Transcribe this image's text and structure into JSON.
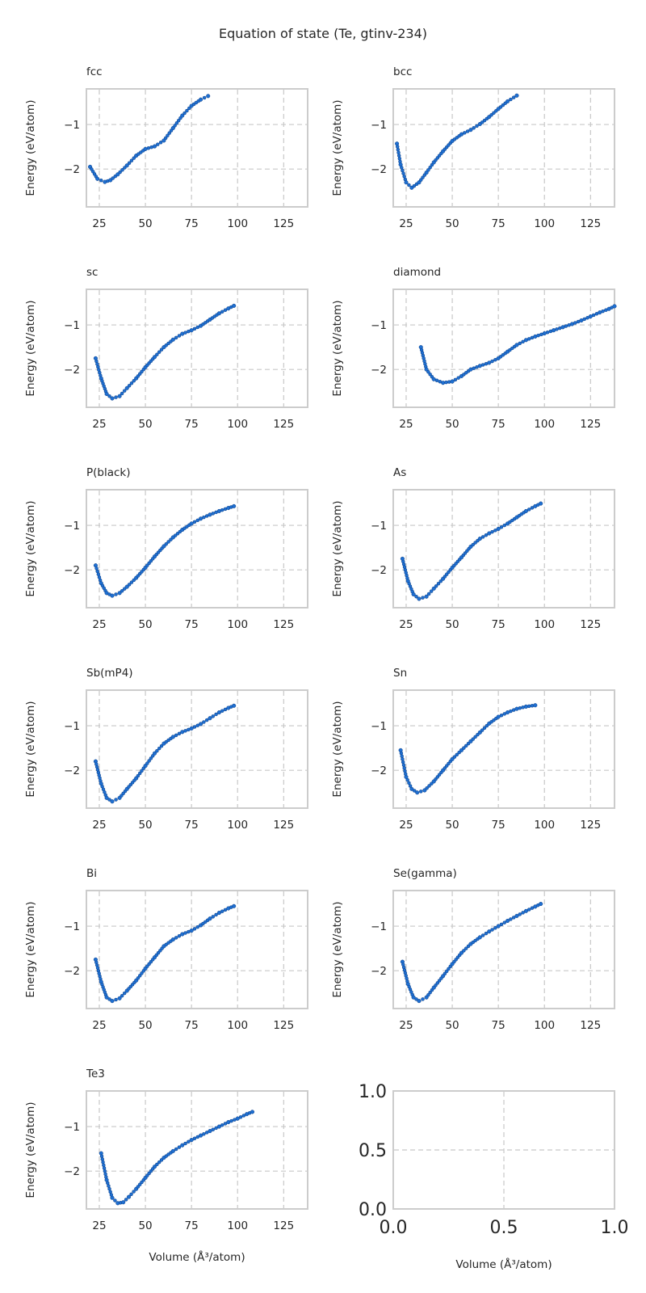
{
  "figure": {
    "title": "Equation of state (Te, gtinv-234)"
  },
  "chart_data": [
    {
      "type": "scatter",
      "title": "fcc",
      "xlabel": "",
      "ylabel": "Energy (eV/atom)",
      "xlim": [
        18,
        138
      ],
      "ylim": [
        -2.85,
        -0.2
      ],
      "xticks": [
        25,
        50,
        75,
        100,
        125
      ],
      "yticks": [
        -2,
        -1
      ],
      "grid": true,
      "color": "#1f6fd1",
      "x": [
        20,
        24,
        28,
        31,
        35,
        40,
        45,
        50,
        55,
        60,
        65,
        70,
        75,
        80,
        84
      ],
      "y": [
        -1.95,
        -2.22,
        -2.29,
        -2.25,
        -2.12,
        -1.92,
        -1.7,
        -1.55,
        -1.49,
        -1.36,
        -1.08,
        -0.8,
        -0.58,
        -0.44,
        -0.36
      ]
    },
    {
      "type": "scatter",
      "title": "bcc",
      "xlabel": "",
      "ylabel": "Energy (eV/atom)",
      "xlim": [
        18,
        138
      ],
      "ylim": [
        -2.85,
        -0.2
      ],
      "xticks": [
        25,
        50,
        75,
        100,
        125
      ],
      "yticks": [
        -2,
        -1
      ],
      "grid": true,
      "color": "#1f6fd1",
      "x": [
        20,
        22,
        25,
        28,
        32,
        36,
        40,
        45,
        50,
        55,
        60,
        65,
        70,
        75,
        80,
        85
      ],
      "y": [
        -1.43,
        -1.9,
        -2.3,
        -2.42,
        -2.3,
        -2.08,
        -1.85,
        -1.6,
        -1.37,
        -1.22,
        -1.12,
        -0.99,
        -0.83,
        -0.65,
        -0.48,
        -0.35
      ]
    },
    {
      "type": "scatter",
      "title": "sc",
      "xlabel": "",
      "ylabel": "Energy (eV/atom)",
      "xlim": [
        18,
        138
      ],
      "ylim": [
        -2.85,
        -0.2
      ],
      "xticks": [
        25,
        50,
        75,
        100,
        125
      ],
      "yticks": [
        -2,
        -1
      ],
      "grid": true,
      "color": "#1f6fd1",
      "x": [
        23,
        26,
        29,
        32,
        36,
        40,
        45,
        50,
        55,
        60,
        65,
        70,
        75,
        80,
        85,
        90,
        95,
        98
      ],
      "y": [
        -1.75,
        -2.2,
        -2.55,
        -2.65,
        -2.6,
        -2.42,
        -2.2,
        -1.95,
        -1.72,
        -1.5,
        -1.33,
        -1.2,
        -1.12,
        -1.02,
        -0.88,
        -0.74,
        -0.63,
        -0.57
      ]
    },
    {
      "type": "scatter",
      "title": "diamond",
      "xlabel": "",
      "ylabel": "Energy (eV/atom)",
      "xlim": [
        18,
        138
      ],
      "ylim": [
        -2.85,
        -0.2
      ],
      "xticks": [
        25,
        50,
        75,
        100,
        125
      ],
      "yticks": [
        -2,
        -1
      ],
      "grid": true,
      "color": "#1f6fd1",
      "x": [
        33,
        36,
        40,
        45,
        50,
        55,
        60,
        65,
        70,
        75,
        80,
        85,
        90,
        95,
        100,
        105,
        110,
        115,
        120,
        125,
        130,
        135,
        138
      ],
      "y": [
        -1.5,
        -2.0,
        -2.22,
        -2.3,
        -2.27,
        -2.15,
        -2.0,
        -1.92,
        -1.85,
        -1.75,
        -1.6,
        -1.45,
        -1.34,
        -1.26,
        -1.19,
        -1.12,
        -1.05,
        -0.98,
        -0.9,
        -0.81,
        -0.72,
        -0.64,
        -0.58
      ]
    },
    {
      "type": "scatter",
      "title": "P(black)",
      "xlabel": "",
      "ylabel": "Energy (eV/atom)",
      "xlim": [
        18,
        138
      ],
      "ylim": [
        -2.85,
        -0.2
      ],
      "xticks": [
        25,
        50,
        75,
        100,
        125
      ],
      "yticks": [
        -2,
        -1
      ],
      "grid": true,
      "color": "#1f6fd1",
      "x": [
        23,
        26,
        29,
        32,
        36,
        40,
        45,
        50,
        55,
        60,
        65,
        70,
        75,
        80,
        85,
        90,
        95,
        98
      ],
      "y": [
        -1.9,
        -2.3,
        -2.52,
        -2.58,
        -2.52,
        -2.38,
        -2.18,
        -1.95,
        -1.7,
        -1.47,
        -1.27,
        -1.1,
        -0.96,
        -0.85,
        -0.76,
        -0.68,
        -0.61,
        -0.57
      ]
    },
    {
      "type": "scatter",
      "title": "As",
      "xlabel": "",
      "ylabel": "Energy (eV/atom)",
      "xlim": [
        18,
        138
      ],
      "ylim": [
        -2.85,
        -0.2
      ],
      "xticks": [
        25,
        50,
        75,
        100,
        125
      ],
      "yticks": [
        -2,
        -1
      ],
      "grid": true,
      "color": "#1f6fd1",
      "x": [
        23,
        26,
        29,
        32,
        36,
        40,
        45,
        50,
        55,
        60,
        65,
        70,
        75,
        80,
        85,
        90,
        95,
        98
      ],
      "y": [
        -1.75,
        -2.25,
        -2.55,
        -2.65,
        -2.6,
        -2.42,
        -2.2,
        -1.95,
        -1.72,
        -1.48,
        -1.3,
        -1.18,
        -1.08,
        -0.96,
        -0.82,
        -0.68,
        -0.57,
        -0.51
      ]
    },
    {
      "type": "scatter",
      "title": "Sb(mP4)",
      "xlabel": "",
      "ylabel": "Energy (eV/atom)",
      "xlim": [
        18,
        138
      ],
      "ylim": [
        -2.85,
        -0.2
      ],
      "xticks": [
        25,
        50,
        75,
        100,
        125
      ],
      "yticks": [
        -2,
        -1
      ],
      "grid": true,
      "color": "#1f6fd1",
      "x": [
        23,
        26,
        29,
        32,
        36,
        40,
        45,
        50,
        55,
        60,
        65,
        70,
        75,
        80,
        85,
        90,
        95,
        98
      ],
      "y": [
        -1.8,
        -2.3,
        -2.62,
        -2.7,
        -2.62,
        -2.42,
        -2.18,
        -1.9,
        -1.62,
        -1.4,
        -1.25,
        -1.14,
        -1.06,
        -0.96,
        -0.83,
        -0.7,
        -0.6,
        -0.55
      ]
    },
    {
      "type": "scatter",
      "title": "Sn",
      "xlabel": "",
      "ylabel": "Energy (eV/atom)",
      "xlim": [
        18,
        138
      ],
      "ylim": [
        -2.85,
        -0.2
      ],
      "xticks": [
        25,
        50,
        75,
        100,
        125
      ],
      "yticks": [
        -2,
        -1
      ],
      "grid": true,
      "color": "#1f6fd1",
      "x": [
        22,
        25,
        28,
        31,
        35,
        40,
        45,
        50,
        55,
        60,
        65,
        70,
        75,
        80,
        85,
        90,
        95
      ],
      "y": [
        -1.55,
        -2.15,
        -2.42,
        -2.5,
        -2.45,
        -2.25,
        -2.0,
        -1.75,
        -1.55,
        -1.35,
        -1.15,
        -0.95,
        -0.8,
        -0.7,
        -0.62,
        -0.57,
        -0.54
      ]
    },
    {
      "type": "scatter",
      "title": "Bi",
      "xlabel": "",
      "ylabel": "Energy (eV/atom)",
      "xlim": [
        18,
        138
      ],
      "ylim": [
        -2.85,
        -0.2
      ],
      "xticks": [
        25,
        50,
        75,
        100,
        125
      ],
      "yticks": [
        -2,
        -1
      ],
      "grid": true,
      "color": "#1f6fd1",
      "x": [
        23,
        26,
        29,
        32,
        36,
        40,
        45,
        50,
        55,
        60,
        65,
        70,
        75,
        80,
        85,
        90,
        95,
        98
      ],
      "y": [
        -1.75,
        -2.25,
        -2.6,
        -2.68,
        -2.62,
        -2.45,
        -2.22,
        -1.95,
        -1.7,
        -1.45,
        -1.3,
        -1.18,
        -1.1,
        -0.98,
        -0.83,
        -0.7,
        -0.6,
        -0.55
      ]
    },
    {
      "type": "scatter",
      "title": "Se(gamma)",
      "xlabel": "",
      "ylabel": "Energy (eV/atom)",
      "xlim": [
        18,
        138
      ],
      "ylim": [
        -2.85,
        -0.2
      ],
      "xticks": [
        25,
        50,
        75,
        100,
        125
      ],
      "yticks": [
        -2,
        -1
      ],
      "grid": true,
      "color": "#1f6fd1",
      "x": [
        23,
        26,
        29,
        32,
        36,
        40,
        45,
        50,
        55,
        60,
        65,
        70,
        75,
        80,
        85,
        90,
        95,
        98
      ],
      "y": [
        -1.8,
        -2.3,
        -2.6,
        -2.68,
        -2.6,
        -2.38,
        -2.12,
        -1.85,
        -1.6,
        -1.4,
        -1.25,
        -1.12,
        -1.0,
        -0.88,
        -0.77,
        -0.66,
        -0.56,
        -0.5
      ]
    },
    {
      "type": "scatter",
      "title": "Te3",
      "xlabel": "Volume (Å³/atom)",
      "ylabel": "Energy (eV/atom)",
      "xlim": [
        18,
        138
      ],
      "ylim": [
        -2.85,
        -0.2
      ],
      "xticks": [
        25,
        50,
        75,
        100,
        125
      ],
      "yticks": [
        -2,
        -1
      ],
      "grid": true,
      "color": "#1f6fd1",
      "x": [
        26,
        29,
        32,
        35,
        38,
        41,
        45,
        50,
        55,
        60,
        65,
        70,
        75,
        80,
        85,
        90,
        95,
        100,
        105,
        108
      ],
      "y": [
        -1.6,
        -2.2,
        -2.6,
        -2.72,
        -2.7,
        -2.58,
        -2.4,
        -2.15,
        -1.9,
        -1.7,
        -1.55,
        -1.42,
        -1.3,
        -1.2,
        -1.1,
        -1.0,
        -0.9,
        -0.82,
        -0.72,
        -0.67
      ]
    },
    {
      "type": "scatter",
      "title": "",
      "xlabel": "Volume (Å³/atom)",
      "ylabel": "",
      "xlim": [
        0,
        1
      ],
      "ylim": [
        0,
        1
      ],
      "xticks": [
        0.0,
        0.5,
        1.0
      ],
      "yticks": [
        0.0,
        0.5,
        1.0
      ],
      "xticklabels": [
        "0.0",
        "0.5",
        "1.0"
      ],
      "yticklabels": [
        "0.0",
        "0.5",
        "1.0"
      ],
      "grid": true,
      "x": [],
      "y": []
    }
  ]
}
